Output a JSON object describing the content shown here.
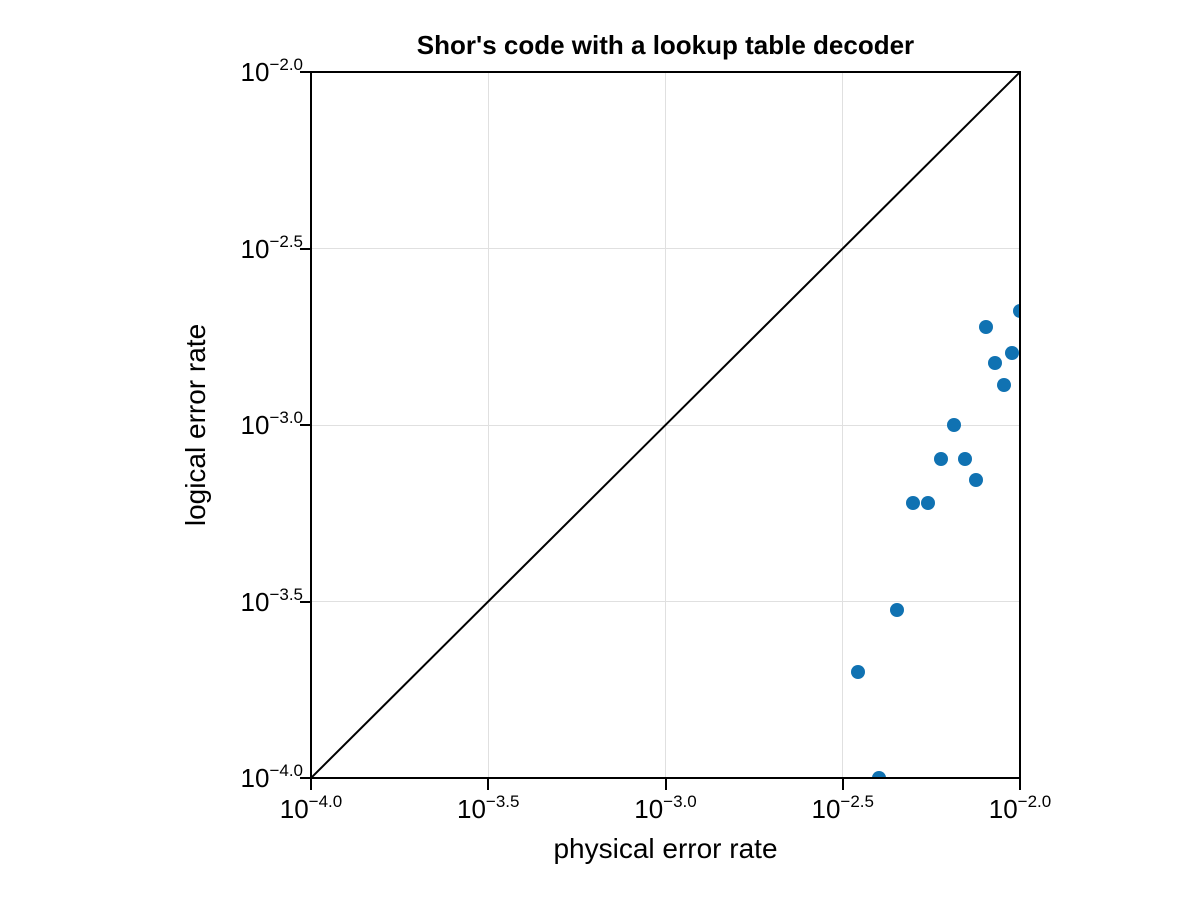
{
  "colors": {
    "background": "#ffffff",
    "axis": "#000000",
    "text": "#000000",
    "grid": "#e0e0e0",
    "marker": "#1072b2",
    "reference_line": "#000000"
  },
  "chart_data": {
    "type": "scatter",
    "title": "Shor's code with a lookup table decoder",
    "xlabel": "physical error rate",
    "ylabel": "logical error rate",
    "xscale": "log",
    "yscale": "log",
    "xlim": [
      0.0001,
      0.01
    ],
    "ylim": [
      0.0001,
      0.01
    ],
    "grid": true,
    "legend": "none",
    "x_ticks": [
      {
        "exp10": -4.0,
        "label_base": "10",
        "label_exponent": "−4.0"
      },
      {
        "exp10": -3.5,
        "label_base": "10",
        "label_exponent": "−3.5"
      },
      {
        "exp10": -3.0,
        "label_base": "10",
        "label_exponent": "−3.0"
      },
      {
        "exp10": -2.5,
        "label_base": "10",
        "label_exponent": "−2.5"
      },
      {
        "exp10": -2.0,
        "label_base": "10",
        "label_exponent": "−2.0"
      }
    ],
    "y_ticks": [
      {
        "exp10": -2.0,
        "label_base": "10",
        "label_exponent": "−2.0"
      },
      {
        "exp10": -2.5,
        "label_base": "10",
        "label_exponent": "−2.5"
      },
      {
        "exp10": -3.0,
        "label_base": "10",
        "label_exponent": "−3.0"
      },
      {
        "exp10": -3.5,
        "label_base": "10",
        "label_exponent": "−3.5"
      },
      {
        "exp10": -4.0,
        "label_base": "10",
        "label_exponent": "−4.0"
      }
    ],
    "series": [
      {
        "marker": "circle",
        "color": "#1072b2",
        "points": [
          [
            0.0035,
            0.0002
          ],
          [
            0.004,
            0.0001
          ],
          [
            0.0045,
            0.0003
          ],
          [
            0.005,
            0.0006
          ],
          [
            0.0055,
            0.0006
          ],
          [
            0.006,
            0.0008
          ],
          [
            0.0065,
            0.001
          ],
          [
            0.007,
            0.0008
          ],
          [
            0.0075,
            0.0007
          ],
          [
            0.008,
            0.0019
          ],
          [
            0.0085,
            0.0015
          ],
          [
            0.009,
            0.0013
          ],
          [
            0.0095,
            0.0016
          ],
          [
            0.01,
            0.0021
          ]
        ]
      }
    ],
    "reference_line": {
      "from": [
        0.0001,
        0.0001
      ],
      "to": [
        0.01,
        0.01
      ],
      "color": "#000000",
      "width": 2
    }
  }
}
